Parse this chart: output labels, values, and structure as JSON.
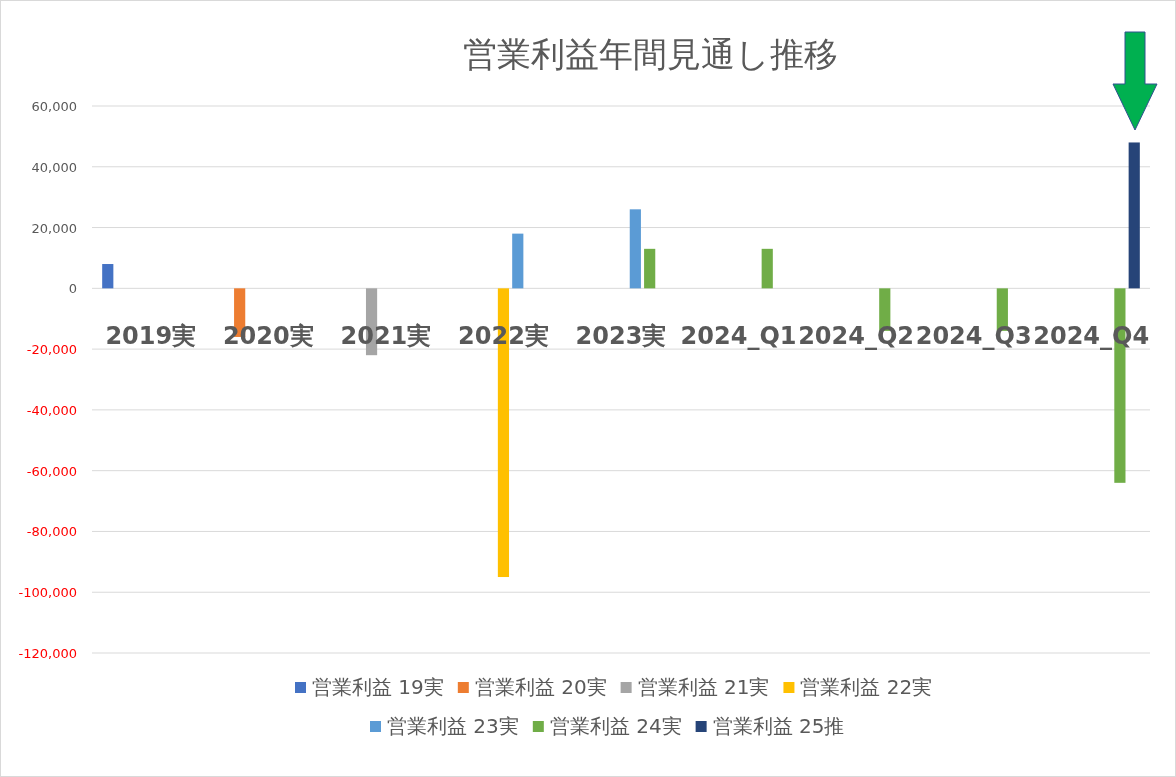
{
  "chart_data": {
    "type": "bar",
    "title": "営業利益年間見通し推移",
    "categories": [
      "2019実",
      "2020実",
      "2021実",
      "2022実",
      "2023実",
      "2024_Q1",
      "2024_Q2",
      "2024_Q3",
      "2024_Q4"
    ],
    "series": [
      {
        "name": "営業利益 19実",
        "color": "#4472c4",
        "values": [
          8000,
          null,
          null,
          null,
          null,
          null,
          null,
          null,
          null
        ]
      },
      {
        "name": "営業利益 20実",
        "color": "#ed7d31",
        "values": [
          null,
          -16000,
          null,
          null,
          null,
          null,
          null,
          null,
          null
        ]
      },
      {
        "name": "営業利益 21実",
        "color": "#a5a5a5",
        "values": [
          null,
          null,
          -22000,
          null,
          null,
          null,
          null,
          null,
          null
        ]
      },
      {
        "name": "営業利益 22実",
        "color": "#ffc000",
        "values": [
          null,
          null,
          null,
          -95000,
          null,
          null,
          null,
          null,
          null
        ]
      },
      {
        "name": "営業利益 23実",
        "color": "#5b9bd5",
        "values": [
          null,
          null,
          null,
          18000,
          26000,
          null,
          null,
          null,
          null
        ]
      },
      {
        "name": "営業利益 24実",
        "color": "#70ad47",
        "values": [
          null,
          null,
          null,
          null,
          13000,
          13000,
          -14000,
          -14000,
          -64000
        ]
      },
      {
        "name": "営業利益 25推",
        "color": "#264478",
        "values": [
          null,
          null,
          null,
          null,
          null,
          null,
          null,
          null,
          48000
        ]
      }
    ],
    "ylim": [
      -120000,
      60000
    ],
    "yticks": [
      {
        "value": -120000,
        "label": "-120,000"
      },
      {
        "value": -100000,
        "label": "-100,000"
      },
      {
        "value": -80000,
        "label": "-80,000"
      },
      {
        "value": -60000,
        "label": "-60,000"
      },
      {
        "value": -40000,
        "label": "-40,000"
      },
      {
        "value": -20000,
        "label": "-20,000"
      },
      0,
      {
        "value": 20000,
        "label": "20,000"
      },
      {
        "value": 40000,
        "label": "40,000"
      },
      {
        "value": 60000,
        "label": "60,000"
      }
    ],
    "grid": "y",
    "legend": "bottom"
  }
}
